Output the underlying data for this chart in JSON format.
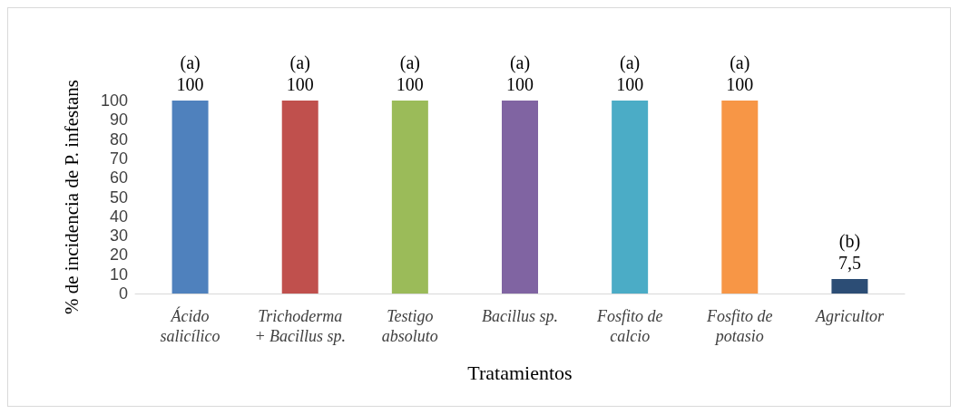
{
  "chart_data": {
    "type": "bar",
    "xlabel": "Tratamientos",
    "ylabel": "% de incidencia de P. infestans",
    "categories": [
      "Ácido\nsalicílico",
      "Trichoderma\n+ Bacillus sp.",
      "Testigo\nabsoluto",
      "Bacillus sp.",
      "Fosfito de\ncalcio",
      "Fosfito de\npotasio",
      "Agricultor"
    ],
    "values": [
      100,
      100,
      100,
      100,
      100,
      100,
      7.5
    ],
    "colors": [
      "#4f81bd",
      "#c0504d",
      "#9bbb59",
      "#8064a2",
      "#4bacc6",
      "#f79646",
      "#2c4d75"
    ],
    "value_labels": [
      "(a)\n100",
      "(a)\n100",
      "(a)\n100",
      "(a)\n100",
      "(a)\n100",
      "(a)\n100",
      "(b)\n7,5"
    ],
    "ylim": [
      0,
      100
    ],
    "yticks": [
      0,
      10,
      20,
      30,
      40,
      50,
      60,
      70,
      80,
      90,
      100
    ],
    "grid": false
  }
}
